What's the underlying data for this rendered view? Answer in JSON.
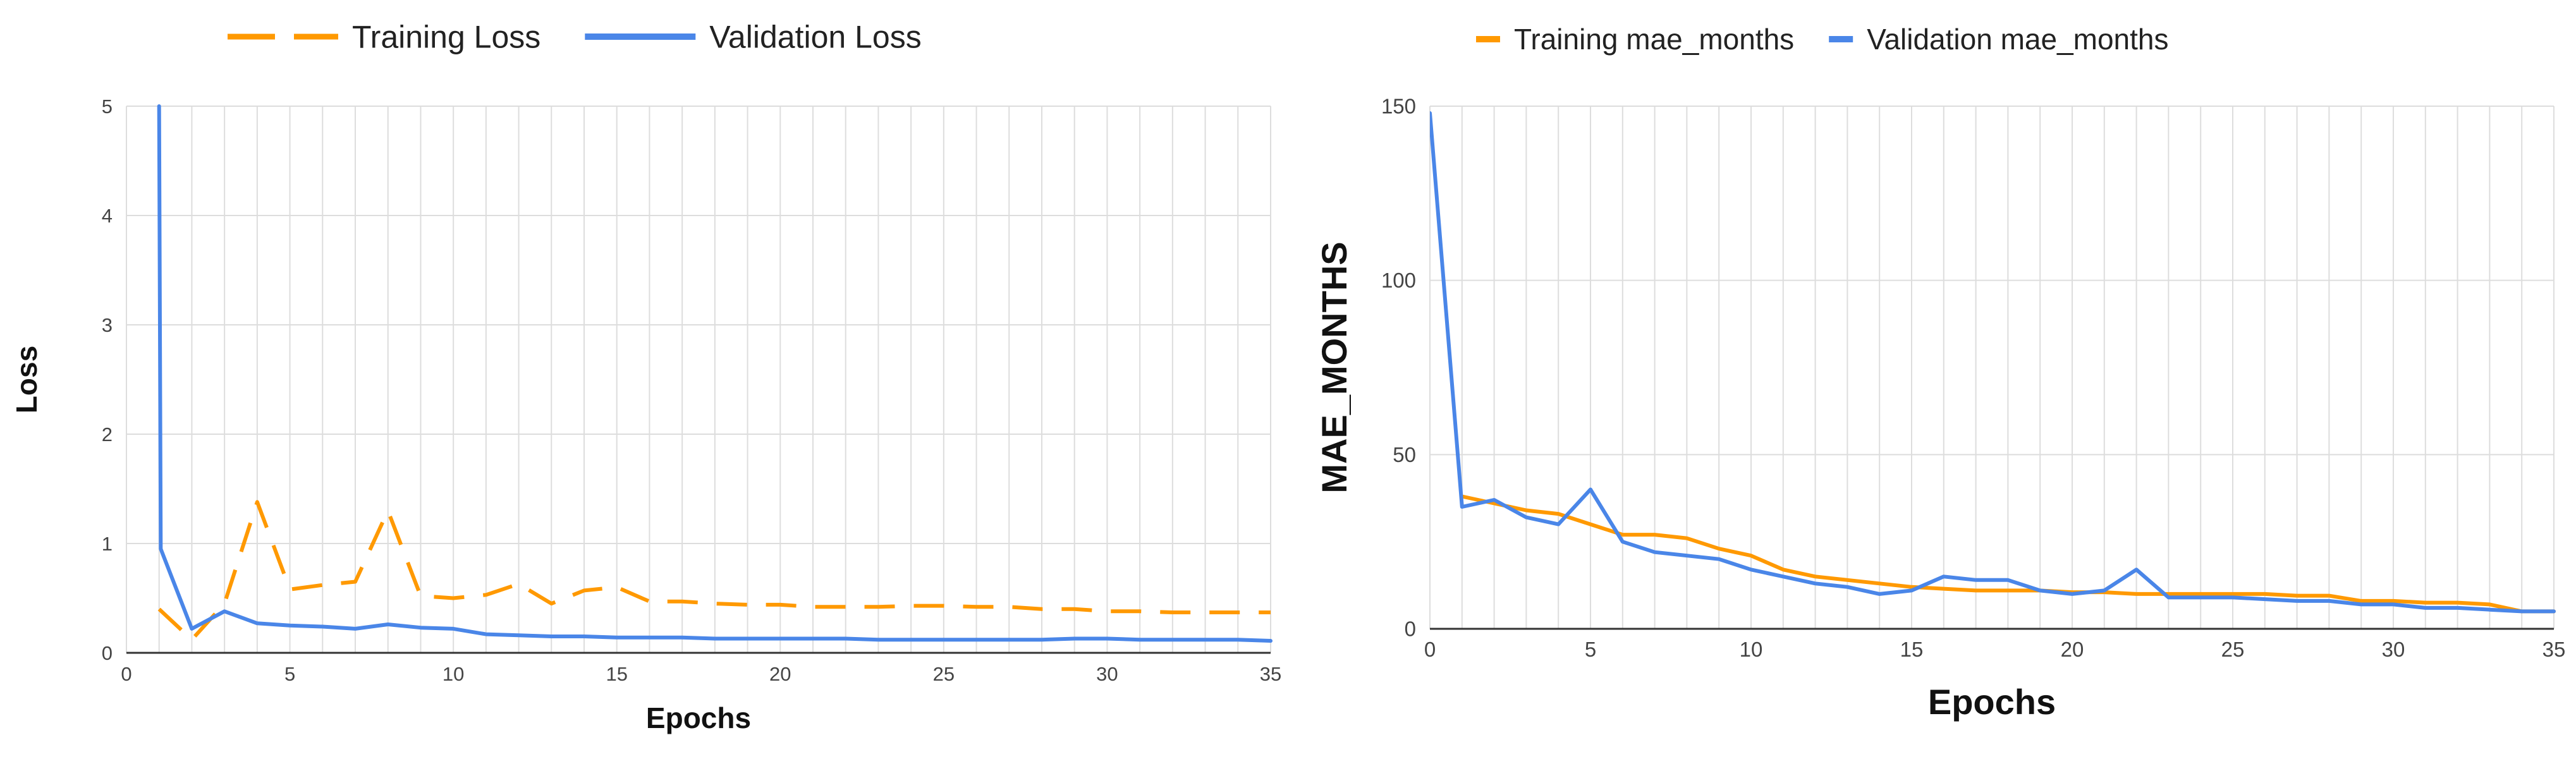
{
  "colors": {
    "training": "#ff9900",
    "validation": "#4a86e8",
    "grid": "#dddddd",
    "axis": "#333333"
  },
  "chart_data": [
    {
      "type": "line",
      "title": "",
      "xlabel": "Epochs",
      "ylabel": "Loss",
      "xlim": [
        0,
        35
      ],
      "ylim": [
        0,
        5
      ],
      "x_ticks": [
        0,
        5,
        10,
        15,
        20,
        25,
        30,
        35
      ],
      "y_ticks": [
        0,
        1,
        2,
        3,
        4,
        5
      ],
      "grid": true,
      "legend_position": "top",
      "series": [
        {
          "name": "Training Loss",
          "style": "dashed",
          "color": "#ff9900",
          "x": [
            1,
            2,
            3,
            4,
            5,
            6,
            7,
            8,
            9,
            10,
            11,
            12,
            13,
            14,
            15,
            16,
            17,
            18,
            19,
            20,
            21,
            22,
            23,
            24,
            25,
            26,
            27,
            28,
            29,
            30,
            31,
            32,
            33,
            34,
            35
          ],
          "y": [
            0.4,
            0.12,
            0.45,
            1.38,
            0.58,
            0.62,
            0.65,
            1.3,
            0.52,
            0.5,
            0.53,
            0.63,
            0.45,
            0.57,
            0.6,
            0.47,
            0.47,
            0.45,
            0.44,
            0.44,
            0.42,
            0.42,
            0.42,
            0.43,
            0.43,
            0.42,
            0.42,
            0.4,
            0.4,
            0.38,
            0.38,
            0.37,
            0.37,
            0.37,
            0.37
          ]
        },
        {
          "name": "Validation Loss",
          "style": "solid",
          "color": "#4a86e8",
          "x": [
            1,
            1.05,
            2,
            3,
            4,
            5,
            6,
            7,
            8,
            9,
            10,
            11,
            12,
            13,
            14,
            15,
            16,
            17,
            18,
            19,
            20,
            21,
            22,
            23,
            24,
            25,
            26,
            27,
            28,
            29,
            30,
            31,
            32,
            33,
            34,
            35
          ],
          "y": [
            5.0,
            0.95,
            0.22,
            0.38,
            0.27,
            0.25,
            0.24,
            0.22,
            0.26,
            0.23,
            0.22,
            0.17,
            0.16,
            0.15,
            0.15,
            0.14,
            0.14,
            0.14,
            0.13,
            0.13,
            0.13,
            0.13,
            0.13,
            0.12,
            0.12,
            0.12,
            0.12,
            0.12,
            0.12,
            0.13,
            0.13,
            0.12,
            0.12,
            0.12,
            0.12,
            0.11
          ]
        }
      ]
    },
    {
      "type": "line",
      "title": "",
      "xlabel": "Epochs",
      "ylabel": "MAE_MONTHS",
      "xlim": [
        0,
        35
      ],
      "ylim": [
        0,
        150
      ],
      "x_ticks": [
        0,
        5,
        10,
        15,
        20,
        25,
        30,
        35
      ],
      "y_ticks": [
        0,
        50,
        100,
        150
      ],
      "grid": true,
      "legend_position": "top",
      "series": [
        {
          "name": "Training mae_months",
          "style": "solid",
          "color": "#ff9900",
          "x": [
            1,
            2,
            3,
            4,
            5,
            6,
            7,
            8,
            9,
            10,
            11,
            12,
            13,
            14,
            15,
            16,
            17,
            18,
            19,
            20,
            21,
            22,
            23,
            24,
            25,
            26,
            27,
            28,
            29,
            30,
            31,
            32,
            33,
            34,
            35
          ],
          "y": [
            38,
            36,
            34,
            33,
            30,
            27,
            27,
            26,
            23,
            21,
            17,
            15,
            14,
            13,
            12,
            11.5,
            11,
            11,
            11,
            10.5,
            10.5,
            10,
            10,
            10,
            10,
            10,
            9.5,
            9.5,
            8,
            8,
            7.5,
            7.5,
            7,
            5,
            5
          ]
        },
        {
          "name": "Validation mae_months",
          "style": "solid",
          "color": "#4a86e8",
          "x": [
            0,
            1,
            2,
            3,
            4,
            5,
            6,
            7,
            8,
            9,
            10,
            11,
            12,
            13,
            14,
            15,
            16,
            17,
            18,
            19,
            20,
            21,
            22,
            23,
            24,
            25,
            26,
            27,
            28,
            29,
            30,
            31,
            32,
            33,
            34,
            35
          ],
          "y": [
            148,
            35,
            37,
            32,
            30,
            40,
            25,
            22,
            21,
            20,
            17,
            15,
            13,
            12,
            10,
            11,
            15,
            14,
            14,
            11,
            10,
            11,
            17,
            9,
            9,
            9,
            8.5,
            8,
            8,
            7,
            7,
            6,
            6,
            5.5,
            5,
            5
          ]
        }
      ]
    }
  ]
}
